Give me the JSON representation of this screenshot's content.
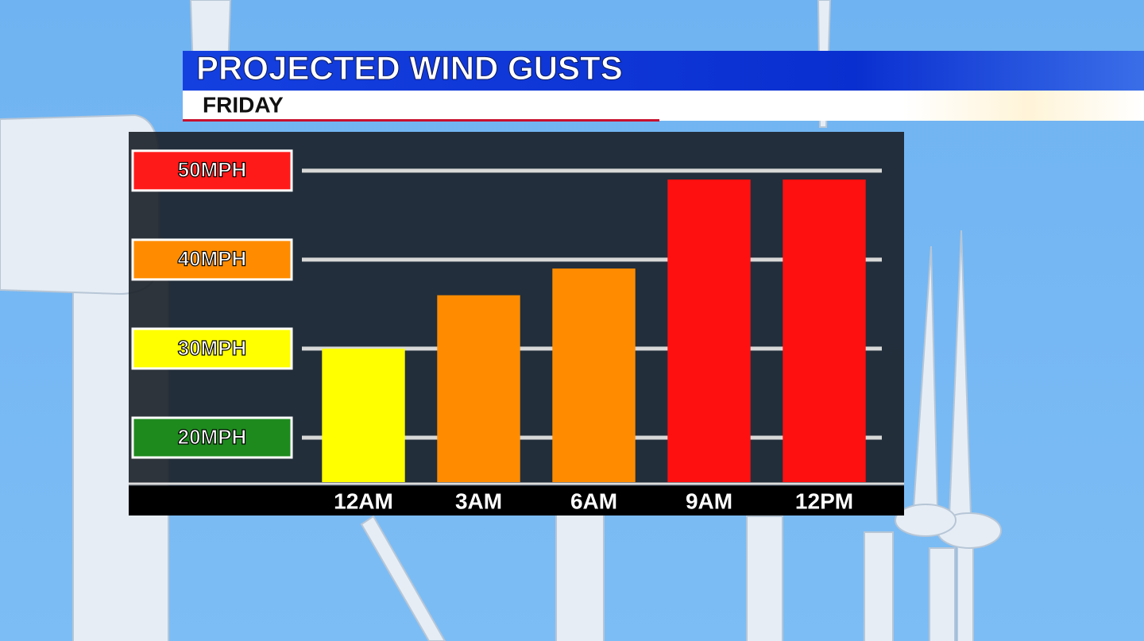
{
  "chart_data": {
    "type": "bar",
    "title": "PROJECTED WIND GUSTS",
    "subtitle": "FRIDAY",
    "categories": [
      "12AM",
      "3AM",
      "6AM",
      "9AM",
      "12PM"
    ],
    "values": [
      30,
      36,
      39,
      49,
      49
    ],
    "colors": [
      "#ffff00",
      "#ff8c00",
      "#ff8c00",
      "#ff1010",
      "#ff1010"
    ],
    "ylim": [
      15,
      54
    ],
    "yticks": [
      {
        "value": 20,
        "label": "20MPH"
      },
      {
        "value": 30,
        "label": "30MPH"
      },
      {
        "value": 40,
        "label": "40MPH"
      },
      {
        "value": 50,
        "label": "50MPH"
      }
    ],
    "ytick_colors": [
      "#1e8a1e",
      "#ffff00",
      "#ff8c00",
      "#ff1a1a"
    ],
    "grid": true
  }
}
